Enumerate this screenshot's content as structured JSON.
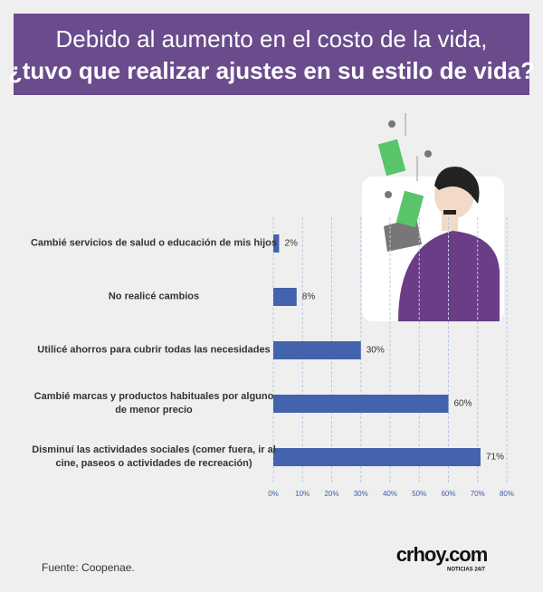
{
  "chart_data": {
    "type": "bar",
    "title": "Debido al aumento en el costo de la vida,",
    "subtitle": "¿tuvo que realizar ajustes en su estilo de vida?",
    "orientation": "horizontal",
    "categories": [
      "Cambié servicios de salud o educación de mis hijos",
      "No realicé cambios",
      "Utilicé ahorros para cubrir todas las necesidades",
      "Cambié marcas y productos habituales por alguno de menor precio",
      "Disminuí las actividades sociales (comer fuera, ir al cine, paseos o actividades de recreación)"
    ],
    "values": [
      2,
      8,
      30,
      60,
      71
    ],
    "value_labels": [
      "2%",
      "8%",
      "30%",
      "60%",
      "71%"
    ],
    "color": "#4463ad",
    "xlim": [
      0,
      80
    ],
    "xticks": [
      {
        "value": 0,
        "label": "0%"
      },
      {
        "value": 10,
        "label": "10%"
      },
      {
        "value": 20,
        "label": "20%"
      },
      {
        "value": 30,
        "label": "30%"
      },
      {
        "value": 40,
        "label": "40%"
      },
      {
        "value": 50,
        "label": "50%"
      },
      {
        "value": 60,
        "label": "60%"
      },
      {
        "value": 70,
        "label": "70%"
      },
      {
        "value": 80,
        "label": "80%"
      }
    ],
    "grid": true
  },
  "source": "Fuente: Coopenae.",
  "logo": {
    "name": "crhoy.com",
    "tagline": "NOTICIAS 24/7"
  }
}
